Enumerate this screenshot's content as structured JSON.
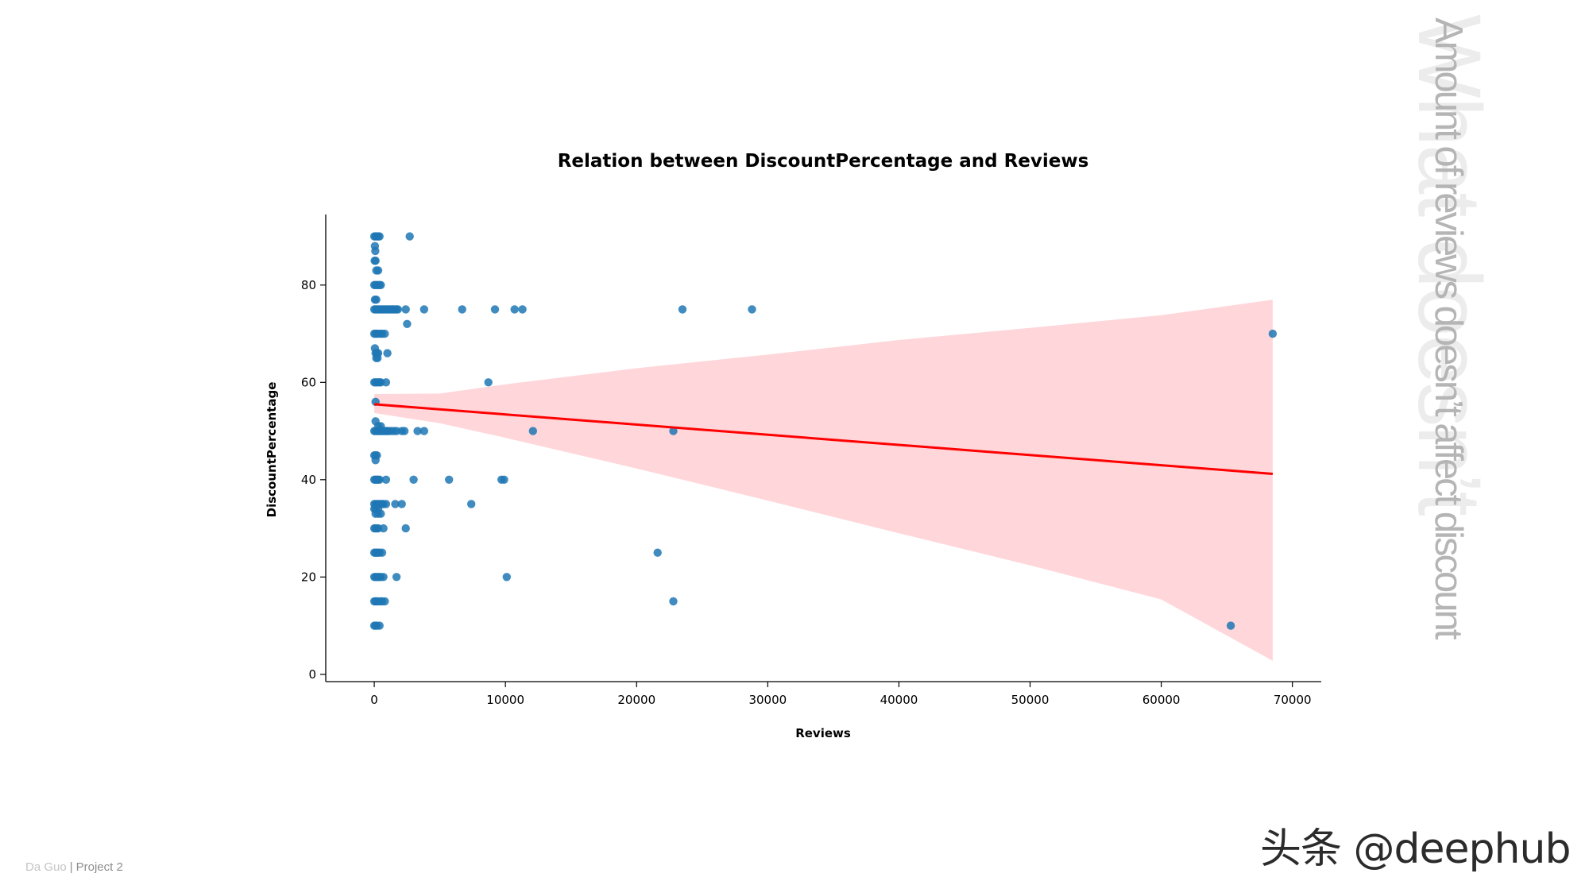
{
  "side_heading": "What doesn’t",
  "side_subheading": "Amount of reviews  doesn’t affect discount",
  "footer": {
    "author": "Da Guo",
    "separator": "|",
    "project": "Project 2"
  },
  "watermark": "头条 @deephub",
  "colors": {
    "points": "#1f77b4",
    "regression_line": "#ff0000",
    "confidence_band": "#ffd6d9"
  },
  "chart_data": {
    "type": "scatter",
    "title": "Relation between DiscountPercentage and Reviews",
    "xlabel": "Reviews",
    "ylabel": "DiscountPercentage",
    "xlim": [
      -3700,
      72200
    ],
    "ylim": [
      -1.5,
      94.5
    ],
    "xticks": [
      0,
      10000,
      20000,
      30000,
      40000,
      50000,
      60000,
      70000
    ],
    "yticks": [
      0,
      20,
      40,
      60,
      80
    ],
    "grid": false,
    "legend": "none",
    "points": [
      [
        0,
        90
      ],
      [
        100,
        90
      ],
      [
        200,
        90
      ],
      [
        300,
        90
      ],
      [
        400,
        90
      ],
      [
        2700,
        90
      ],
      [
        50,
        88
      ],
      [
        80,
        87
      ],
      [
        30,
        85
      ],
      [
        100,
        85
      ],
      [
        150,
        83
      ],
      [
        300,
        83
      ],
      [
        0,
        80
      ],
      [
        100,
        80
      ],
      [
        200,
        80
      ],
      [
        300,
        80
      ],
      [
        400,
        80
      ],
      [
        500,
        80
      ],
      [
        50,
        77
      ],
      [
        150,
        77
      ],
      [
        0,
        75
      ],
      [
        100,
        75
      ],
      [
        200,
        75
      ],
      [
        300,
        75
      ],
      [
        400,
        75
      ],
      [
        500,
        75
      ],
      [
        600,
        75
      ],
      [
        700,
        75
      ],
      [
        800,
        75
      ],
      [
        900,
        75
      ],
      [
        1000,
        75
      ],
      [
        1100,
        75
      ],
      [
        1200,
        75
      ],
      [
        1300,
        75
      ],
      [
        1400,
        75
      ],
      [
        1500,
        75
      ],
      [
        1600,
        75
      ],
      [
        1700,
        75
      ],
      [
        1800,
        75
      ],
      [
        2400,
        75
      ],
      [
        3800,
        75
      ],
      [
        6700,
        75
      ],
      [
        9200,
        75
      ],
      [
        10700,
        75
      ],
      [
        11300,
        75
      ],
      [
        23500,
        75
      ],
      [
        28800,
        75
      ],
      [
        2500,
        72
      ],
      [
        0,
        70
      ],
      [
        100,
        70
      ],
      [
        200,
        70
      ],
      [
        300,
        70
      ],
      [
        500,
        70
      ],
      [
        600,
        70
      ],
      [
        800,
        70
      ],
      [
        68500,
        70
      ],
      [
        50,
        67
      ],
      [
        100,
        66
      ],
      [
        200,
        66
      ],
      [
        300,
        66
      ],
      [
        1000,
        66
      ],
      [
        150,
        65
      ],
      [
        250,
        65
      ],
      [
        0,
        60
      ],
      [
        100,
        60
      ],
      [
        200,
        60
      ],
      [
        300,
        60
      ],
      [
        400,
        60
      ],
      [
        500,
        60
      ],
      [
        900,
        60
      ],
      [
        8700,
        60
      ],
      [
        100,
        56
      ],
      [
        100,
        52
      ],
      [
        300,
        51
      ],
      [
        500,
        51
      ],
      [
        0,
        50
      ],
      [
        100,
        50
      ],
      [
        200,
        50
      ],
      [
        300,
        50
      ],
      [
        400,
        50
      ],
      [
        500,
        50
      ],
      [
        600,
        50
      ],
      [
        700,
        50
      ],
      [
        800,
        50
      ],
      [
        900,
        50
      ],
      [
        1000,
        50
      ],
      [
        1100,
        50
      ],
      [
        1300,
        50
      ],
      [
        1500,
        50
      ],
      [
        1700,
        50
      ],
      [
        2100,
        50
      ],
      [
        2300,
        50
      ],
      [
        3300,
        50
      ],
      [
        3800,
        50
      ],
      [
        12100,
        50
      ],
      [
        22800,
        50
      ],
      [
        0,
        45
      ],
      [
        100,
        45
      ],
      [
        200,
        45
      ],
      [
        100,
        44
      ],
      [
        0,
        40
      ],
      [
        100,
        40
      ],
      [
        200,
        40
      ],
      [
        300,
        40
      ],
      [
        400,
        40
      ],
      [
        900,
        40
      ],
      [
        3000,
        40
      ],
      [
        5700,
        40
      ],
      [
        9700,
        40
      ],
      [
        9900,
        40
      ],
      [
        0,
        35
      ],
      [
        100,
        35
      ],
      [
        200,
        35
      ],
      [
        300,
        35
      ],
      [
        400,
        35
      ],
      [
        500,
        35
      ],
      [
        600,
        35
      ],
      [
        700,
        35
      ],
      [
        900,
        35
      ],
      [
        1600,
        35
      ],
      [
        2100,
        35
      ],
      [
        7400,
        35
      ],
      [
        0,
        34
      ],
      [
        100,
        34
      ],
      [
        300,
        34
      ],
      [
        100,
        33
      ],
      [
        300,
        33
      ],
      [
        500,
        33
      ],
      [
        0,
        30
      ],
      [
        100,
        30
      ],
      [
        200,
        30
      ],
      [
        300,
        30
      ],
      [
        700,
        30
      ],
      [
        2400,
        30
      ],
      [
        0,
        25
      ],
      [
        100,
        25
      ],
      [
        200,
        25
      ],
      [
        300,
        25
      ],
      [
        400,
        25
      ],
      [
        600,
        25
      ],
      [
        21600,
        25
      ],
      [
        0,
        20
      ],
      [
        100,
        20
      ],
      [
        200,
        20
      ],
      [
        300,
        20
      ],
      [
        400,
        20
      ],
      [
        500,
        20
      ],
      [
        700,
        20
      ],
      [
        1700,
        20
      ],
      [
        10100,
        20
      ],
      [
        0,
        15
      ],
      [
        100,
        15
      ],
      [
        200,
        15
      ],
      [
        300,
        15
      ],
      [
        500,
        15
      ],
      [
        600,
        15
      ],
      [
        800,
        15
      ],
      [
        22800,
        15
      ],
      [
        0,
        10
      ],
      [
        100,
        10
      ],
      [
        200,
        10
      ],
      [
        400,
        10
      ],
      [
        65300,
        10
      ]
    ],
    "regression": {
      "x": [
        0,
        68500
      ],
      "y": [
        55.5,
        41.2
      ],
      "ci_lower": [
        [
          0,
          53.7
        ],
        [
          5000,
          51.6
        ],
        [
          10000,
          48.6
        ],
        [
          20000,
          42.3
        ],
        [
          30000,
          35.7
        ],
        [
          40000,
          29.0
        ],
        [
          50000,
          22.4
        ],
        [
          60000,
          15.4
        ],
        [
          68500,
          2.8
        ]
      ],
      "ci_upper": [
        [
          0,
          57.6
        ],
        [
          5000,
          57.7
        ],
        [
          10000,
          59.6
        ],
        [
          20000,
          62.9
        ],
        [
          30000,
          65.7
        ],
        [
          40000,
          68.7
        ],
        [
          50000,
          71.2
        ],
        [
          60000,
          73.8
        ],
        [
          68500,
          77.0
        ]
      ]
    }
  }
}
